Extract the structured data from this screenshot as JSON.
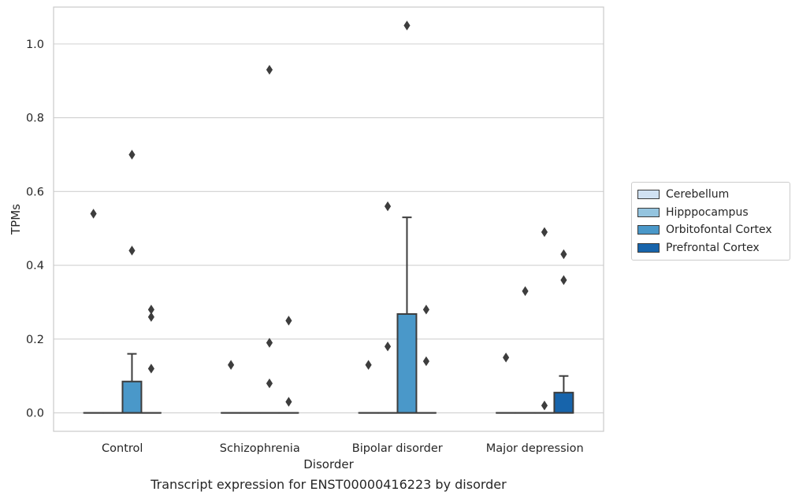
{
  "caption": "Transcript expression for ENST00000416223 by disorder",
  "chart_data": {
    "type": "box",
    "title": "",
    "xlabel": "Disorder",
    "ylabel": "TPMs",
    "categories": [
      "Control",
      "Schizophrenia",
      "Bipolar disorder",
      "Major depression"
    ],
    "ylim": [
      -0.05,
      1.1
    ],
    "yticks": [
      0.0,
      0.2,
      0.4,
      0.6,
      0.8,
      1.0
    ],
    "ytick_labels": [
      "0.0",
      "0.2",
      "0.4",
      "0.6",
      "0.8",
      "1.0"
    ],
    "grid": true,
    "legend_position": "right",
    "series": [
      {
        "name": "Cerebellum",
        "color": "#d0e1f2",
        "boxes": [
          {
            "q1": 0,
            "median": 0,
            "q3": 0,
            "whislo": 0,
            "whishi": 0,
            "fliers": [
              0.54
            ]
          },
          {
            "q1": 0,
            "median": 0,
            "q3": 0,
            "whislo": 0,
            "whishi": 0,
            "fliers": [
              0.13
            ]
          },
          {
            "q1": 0,
            "median": 0,
            "q3": 0,
            "whislo": 0,
            "whishi": 0,
            "fliers": [
              0.13
            ]
          },
          {
            "q1": 0,
            "median": 0,
            "q3": 0,
            "whislo": 0,
            "whishi": 0,
            "fliers": [
              0.15
            ]
          }
        ]
      },
      {
        "name": "Hipppocampus",
        "color": "#94c4df",
        "boxes": [
          {
            "q1": 0,
            "median": 0,
            "q3": 0,
            "whislo": 0,
            "whishi": 0,
            "fliers": []
          },
          {
            "q1": 0,
            "median": 0,
            "q3": 0,
            "whislo": 0,
            "whishi": 0,
            "fliers": []
          },
          {
            "q1": 0,
            "median": 0,
            "q3": 0,
            "whislo": 0,
            "whishi": 0,
            "fliers": [
              0.18,
              0.56
            ]
          },
          {
            "q1": 0,
            "median": 0,
            "q3": 0,
            "whislo": 0,
            "whishi": 0,
            "fliers": [
              0.33
            ]
          }
        ]
      },
      {
        "name": "Orbitofontal Cortex",
        "color": "#4a98c9",
        "boxes": [
          {
            "q1": 0,
            "median": 0,
            "q3": 0.085,
            "whislo": 0,
            "whishi": 0.16,
            "fliers": [
              0.44,
              0.7
            ]
          },
          {
            "q1": 0,
            "median": 0,
            "q3": 0,
            "whislo": 0,
            "whishi": 0,
            "fliers": [
              0.08,
              0.19,
              0.93
            ]
          },
          {
            "q1": 0,
            "median": 0,
            "q3": 0.268,
            "whislo": 0,
            "whishi": 0.53,
            "fliers": [
              1.05
            ]
          },
          {
            "q1": 0,
            "median": 0,
            "q3": 0,
            "whislo": 0,
            "whishi": 0,
            "fliers": [
              0.02,
              0.49
            ]
          }
        ]
      },
      {
        "name": "Prefrontal Cortex",
        "color": "#1764ab",
        "boxes": [
          {
            "q1": 0,
            "median": 0,
            "q3": 0,
            "whislo": 0,
            "whishi": 0,
            "fliers": [
              0.12,
              0.26,
              0.28
            ]
          },
          {
            "q1": 0,
            "median": 0,
            "q3": 0,
            "whislo": 0,
            "whishi": 0,
            "fliers": [
              0.03,
              0.25
            ]
          },
          {
            "q1": 0,
            "median": 0,
            "q3": 0,
            "whislo": 0,
            "whishi": 0,
            "fliers": [
              0.14,
              0.28
            ]
          },
          {
            "q1": 0,
            "median": 0,
            "q3": 0.055,
            "whislo": 0,
            "whishi": 0.1,
            "fliers": [
              0.36,
              0.43
            ]
          }
        ]
      }
    ]
  }
}
